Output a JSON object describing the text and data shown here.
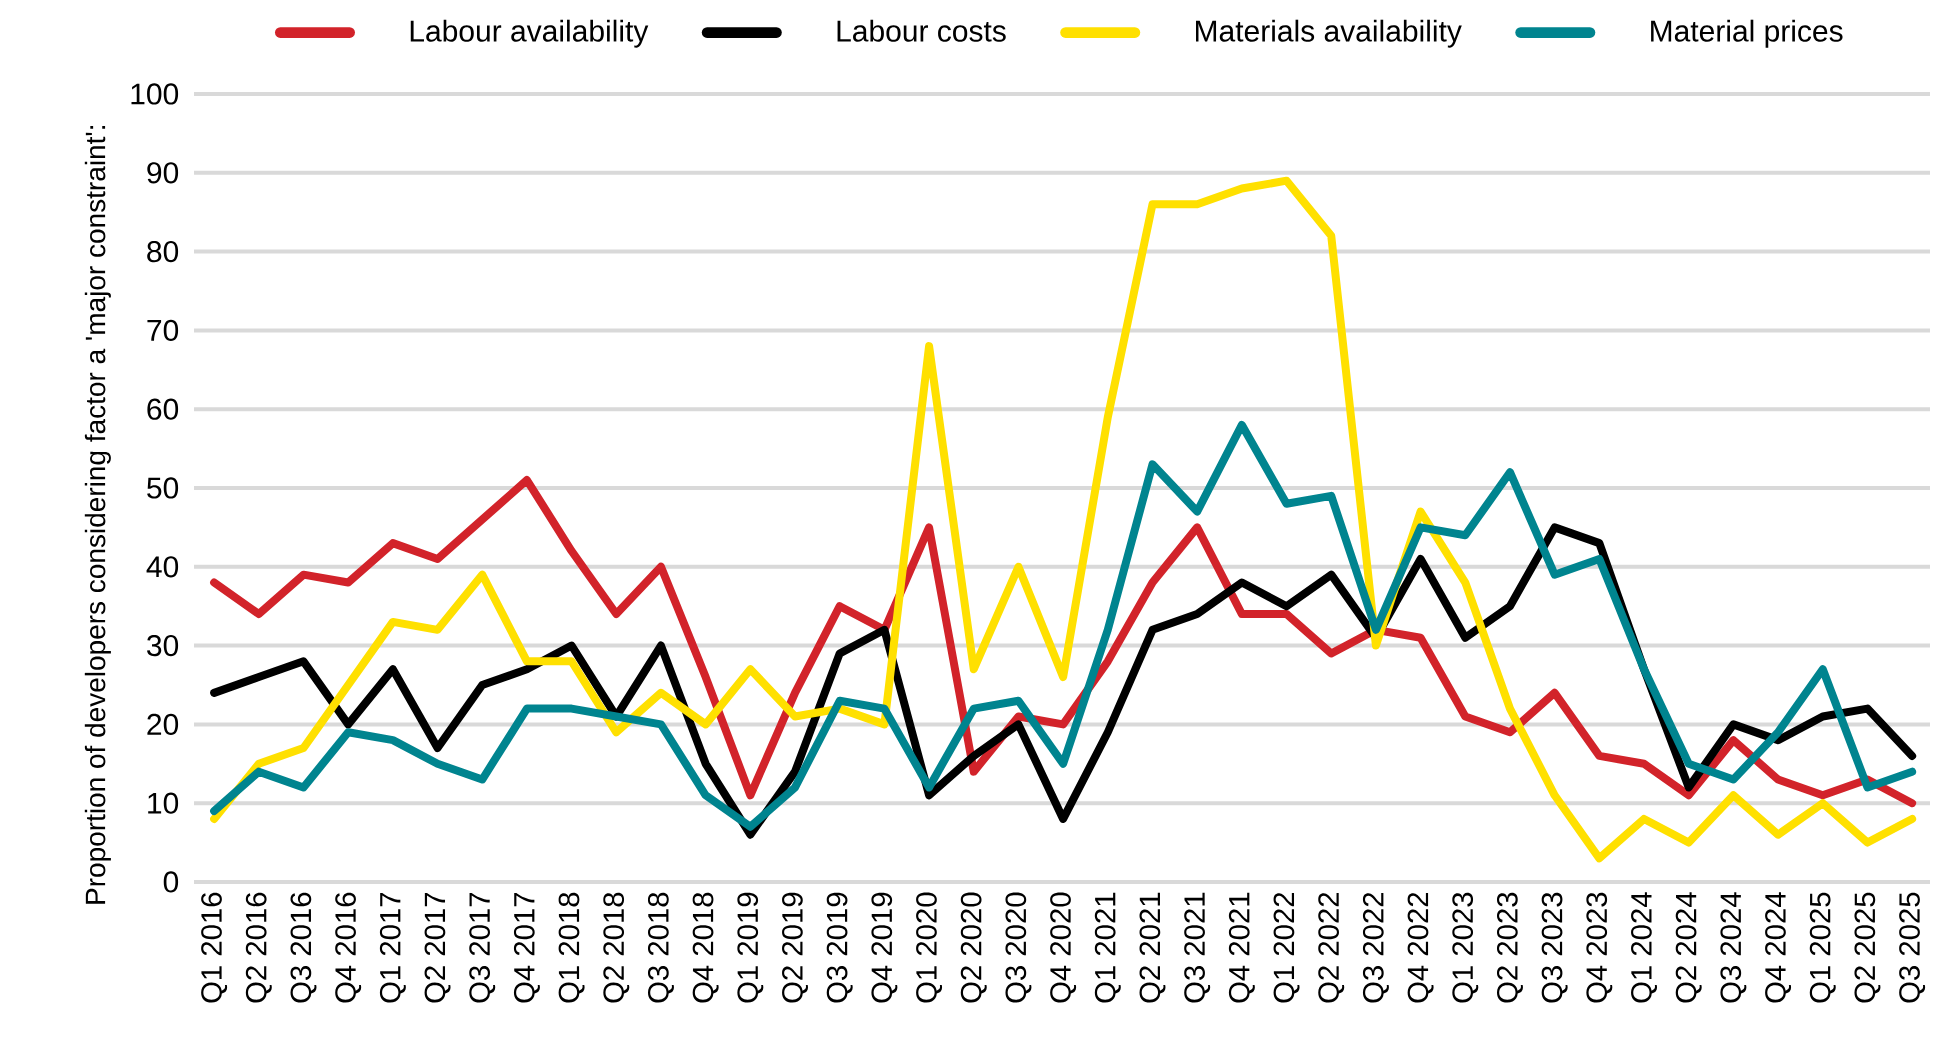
{
  "chart_data": {
    "type": "line",
    "ylabel": "Proportion of developers considering factor a 'major constraint':",
    "categories": [
      "Q1 2016",
      "Q2 2016",
      "Q3 2016",
      "Q4 2016",
      "Q1 2017",
      "Q2 2017",
      "Q3 2017",
      "Q4 2017",
      "Q1 2018",
      "Q2 2018",
      "Q3 2018",
      "Q4 2018",
      "Q1 2019",
      "Q2 2019",
      "Q3 2019",
      "Q4 2019",
      "Q1 2020",
      "Q2 2020",
      "Q3 2020",
      "Q4 2020",
      "Q1 2021",
      "Q2 2021",
      "Q3 2021",
      "Q4 2021",
      "Q1 2022",
      "Q2 2022",
      "Q3 2022",
      "Q4 2022",
      "Q1 2023",
      "Q2 2023",
      "Q3 2023",
      "Q4 2023",
      "Q1 2024",
      "Q2 2024",
      "Q3 2024",
      "Q4 2024",
      "Q1 2025",
      "Q2 2025",
      "Q3 2025"
    ],
    "series": [
      {
        "name": "Labour availability",
        "color": "#d2232a",
        "values": [
          38,
          34,
          39,
          38,
          43,
          41,
          46,
          51,
          42,
          34,
          40,
          26,
          11,
          24,
          35,
          32,
          45,
          14,
          21,
          20,
          28,
          38,
          45,
          34,
          34,
          29,
          32,
          31,
          21,
          19,
          24,
          16,
          15,
          11,
          18,
          13,
          11,
          13,
          10
        ]
      },
      {
        "name": "Labour costs",
        "color": "#000000",
        "values": [
          24,
          26,
          28,
          20,
          27,
          17,
          25,
          27,
          30,
          21,
          30,
          15,
          6,
          14,
          29,
          32,
          11,
          16,
          20,
          8,
          19,
          32,
          34,
          38,
          35,
          39,
          31,
          41,
          31,
          35,
          45,
          43,
          27,
          12,
          20,
          18,
          21,
          22,
          16
        ]
      },
      {
        "name": "Materials availability",
        "color": "#ffe000",
        "values": [
          8,
          15,
          17,
          25,
          33,
          32,
          39,
          28,
          28,
          19,
          24,
          20,
          27,
          21,
          22,
          20,
          68,
          27,
          40,
          26,
          59,
          86,
          86,
          88,
          89,
          82,
          30,
          47,
          38,
          22,
          11,
          3,
          8,
          5,
          11,
          6,
          10,
          5,
          8
        ]
      },
      {
        "name": "Material prices",
        "color": "#00848f",
        "values": [
          9,
          14,
          12,
          19,
          18,
          15,
          13,
          22,
          22,
          21,
          20,
          11,
          7,
          12,
          23,
          22,
          12,
          22,
          23,
          15,
          32,
          53,
          47,
          58,
          48,
          49,
          32,
          45,
          44,
          52,
          39,
          41,
          27,
          15,
          13,
          19,
          27,
          12,
          14
        ]
      }
    ],
    "ylim": [
      0,
      100
    ],
    "yticks": [
      0,
      10,
      20,
      30,
      40,
      50,
      60,
      70,
      80,
      90,
      100
    ],
    "grid": "y",
    "legend": "top",
    "marker": "none",
    "line_style": "solid"
  }
}
